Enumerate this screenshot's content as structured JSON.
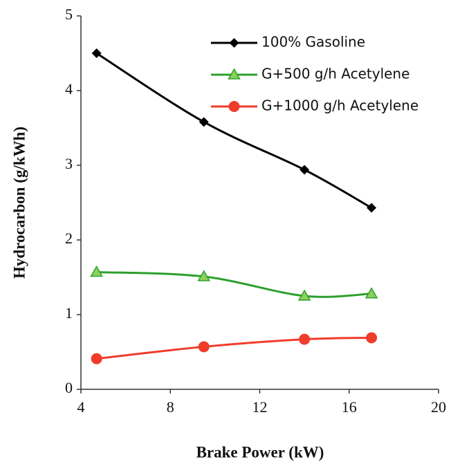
{
  "chart_data": {
    "type": "line",
    "x_label": "Brake Power (kW)",
    "y_label": "Hydrocarbon (g/kWh)",
    "x": [
      4.7,
      9.5,
      14,
      17
    ],
    "series": [
      {
        "name": "100% Gasoline",
        "color": "#000000",
        "marker": "diamond",
        "values": [
          4.5,
          3.58,
          2.94,
          2.43
        ]
      },
      {
        "name": "G+500 g/h Acetylene",
        "color": "#2ca02c",
        "marker": "triangle",
        "values": [
          1.57,
          1.51,
          1.25,
          1.28
        ]
      },
      {
        "name": "G+1000 g/h Acetylene",
        "color": "#f03c2a",
        "marker": "circle",
        "values": [
          0.41,
          0.57,
          0.67,
          0.69
        ]
      }
    ],
    "xlim": [
      4,
      20
    ],
    "xticks": [
      4,
      8,
      12,
      16,
      20
    ],
    "ylim": [
      0,
      5
    ],
    "yticks": [
      0,
      1,
      2,
      3,
      4,
      5
    ],
    "grid": false,
    "legend": "upper right",
    "smooth": true
  }
}
